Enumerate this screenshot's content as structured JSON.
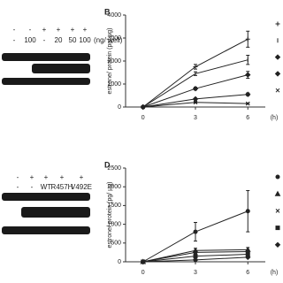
{
  "panel_a": {
    "row1": [
      "-",
      "-",
      "+",
      "+",
      "+",
      "+"
    ],
    "row2": [
      "-",
      "100",
      "-",
      "20",
      "50",
      "100"
    ],
    "unit": "(ng/ well)"
  },
  "panel_c": {
    "row1": [
      "-",
      "+",
      "+",
      "+",
      "+"
    ],
    "row2": [
      "-",
      "-",
      "WT",
      "R457H",
      "V492E"
    ]
  },
  "chart_data": [
    {
      "type": "line",
      "label": "B",
      "y_label": "estrone/ protein (pg/ μg)",
      "x_unit": "(h)",
      "x": [
        0,
        3,
        6
      ],
      "xlim": [
        -1,
        7
      ],
      "xticks": [
        0,
        3,
        6
      ],
      "ylim": [
        0,
        4000
      ],
      "yticks": [
        0,
        1000,
        2000,
        3000,
        4000
      ],
      "series": [
        {
          "marker": "plus",
          "color": "#222",
          "values": [
            0,
            1750,
            2950
          ],
          "errors": [
            0,
            100,
            350
          ]
        },
        {
          "marker": "bar",
          "color": "#222",
          "values": [
            0,
            1450,
            2050
          ],
          "errors": [
            0,
            80,
            200
          ]
        },
        {
          "marker": "diamond",
          "color": "#222",
          "values": [
            0,
            800,
            1400
          ],
          "errors": [
            0,
            60,
            150
          ]
        },
        {
          "marker": "diamond",
          "color": "#222",
          "values": [
            0,
            350,
            550
          ],
          "errors": [
            0,
            40,
            60
          ]
        },
        {
          "marker": "cross",
          "color": "#222",
          "values": [
            0,
            200,
            150
          ],
          "errors": [
            0,
            30,
            30
          ]
        }
      ]
    },
    {
      "type": "line",
      "label": "D",
      "y_label": "estrone/ protein (pg/ μg)",
      "x_unit": "(h)",
      "x": [
        0,
        3,
        6
      ],
      "xlim": [
        -1,
        7
      ],
      "xticks": [
        0,
        3,
        6
      ],
      "ylim": [
        0,
        2500
      ],
      "yticks": [
        0,
        500,
        1000,
        1500,
        2000,
        2500
      ],
      "series": [
        {
          "marker": "circle",
          "color": "#222",
          "values": [
            0,
            800,
            1350
          ],
          "errors": [
            0,
            250,
            550
          ]
        },
        {
          "marker": "triangle",
          "color": "#222",
          "values": [
            0,
            300,
            320
          ],
          "errors": [
            0,
            60,
            60
          ]
        },
        {
          "marker": "cross",
          "color": "#222",
          "values": [
            0,
            250,
            270
          ],
          "errors": [
            0,
            40,
            40
          ]
        },
        {
          "marker": "square",
          "color": "#222",
          "values": [
            0,
            150,
            200
          ],
          "errors": [
            0,
            30,
            40
          ]
        },
        {
          "marker": "diamond",
          "color": "#222",
          "values": [
            0,
            50,
            120
          ],
          "errors": [
            0,
            20,
            20
          ]
        }
      ]
    }
  ]
}
